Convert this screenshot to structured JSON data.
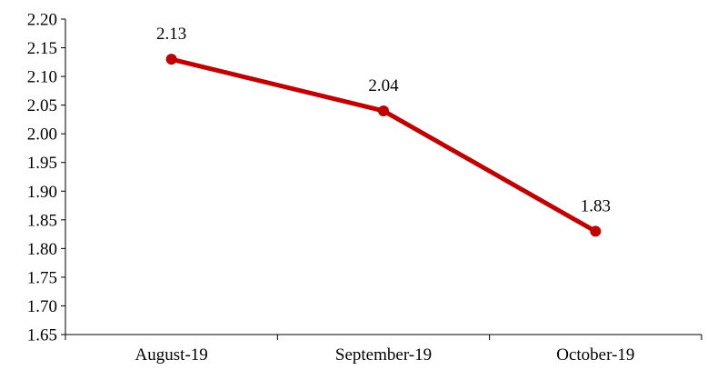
{
  "chart_data": {
    "type": "line",
    "title": "",
    "xlabel": "",
    "ylabel": "",
    "categories": [
      "August-19",
      "September-19",
      "October-19"
    ],
    "series": [
      {
        "values": [
          2.13,
          2.04,
          1.83
        ],
        "color": "#C00000",
        "markers": true,
        "data_labels": [
          "2.13",
          "2.04",
          "1.83"
        ]
      }
    ],
    "ylim": [
      1.65,
      2.2
    ],
    "ytick_step": 0.05,
    "y_tick_labels": [
      "1.65",
      "1.70",
      "1.75",
      "1.80",
      "1.85",
      "1.90",
      "1.95",
      "2.00",
      "2.05",
      "2.10",
      "2.15",
      "2.20"
    ],
    "grid": false,
    "legend": "none",
    "axis_color": "#000000"
  }
}
